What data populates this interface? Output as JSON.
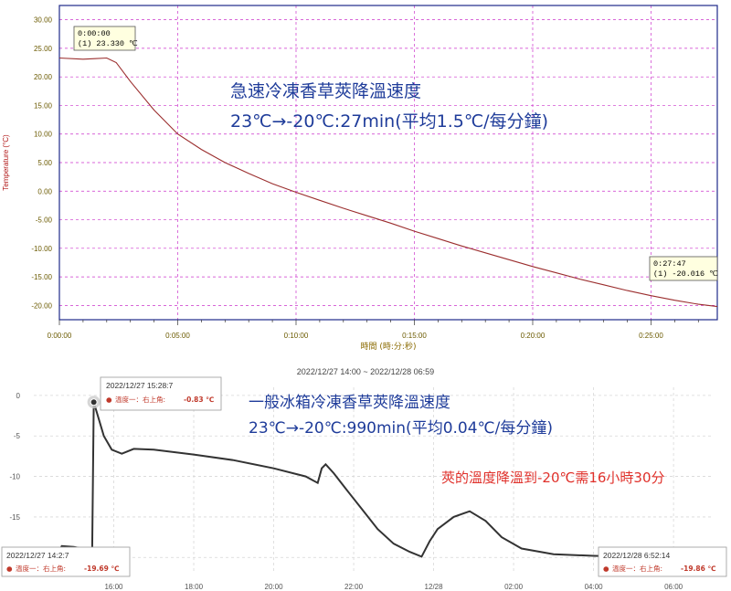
{
  "chart_data": [
    {
      "type": "line",
      "title": "急速冷凍香草莢降溫速度",
      "subtitle": "23℃→-20℃:27min(平均1.5℃/每分鐘)",
      "xlabel": "時間 (時:分:秒)",
      "ylabel": "Temperature (°C)",
      "xlim": [
        0,
        27.8
      ],
      "ylim": [
        -22.5,
        32.5
      ],
      "y_ticks": [
        "30.00",
        "25.00",
        "20.00",
        "15.00",
        "10.00",
        "5.00",
        "0.00",
        "-5.00",
        "-10.00",
        "-15.00",
        "-20.00"
      ],
      "y_tick_values": [
        30,
        25,
        20,
        15,
        10,
        5,
        0,
        -5,
        -10,
        -15,
        -20
      ],
      "x_ticks": [
        "0:00:00",
        "0:05:00",
        "0:10:00",
        "0:15:00",
        "0:20:00",
        "0:25:00"
      ],
      "x_tick_values": [
        0,
        5,
        10,
        15,
        20,
        25
      ],
      "grid": true,
      "series": [
        {
          "x": [
            0,
            1,
            1.5,
            2,
            2.4,
            3,
            4,
            5,
            6,
            7,
            8,
            9,
            10,
            11,
            12,
            13,
            14,
            15,
            16,
            17,
            18,
            19,
            20,
            21,
            22,
            23,
            24,
            25,
            26,
            27,
            27.8
          ],
          "values": [
            23.3,
            23.1,
            23.2,
            23.3,
            22.5,
            19.2,
            14.2,
            10.0,
            7.3,
            5.0,
            3.1,
            1.3,
            -0.2,
            -1.6,
            -3.0,
            -4.3,
            -5.6,
            -7.0,
            -8.3,
            -9.6,
            -10.8,
            -12.0,
            -13.2,
            -14.3,
            -15.4,
            -16.4,
            -17.4,
            -18.3,
            -19.1,
            -19.8,
            -20.2
          ]
        }
      ],
      "annotations": [
        {
          "time": "0:00:00",
          "value": "(1) 23.330 ℃"
        },
        {
          "time": "0:27:47",
          "value": "(1) -20.016 ℃"
        }
      ]
    },
    {
      "type": "line",
      "title": "2022/12/27 14:00 ~ 2022/12/28 06:59",
      "subtitle": "一般冰箱冷凍香草莢降溫速度",
      "subtitle2": "23℃→-20℃:990min(平均0.04℃/每分鐘)",
      "note": "莢的溫度降溫到-20℃需16小時30分",
      "xlim": [
        14.0,
        6.99
      ],
      "ylim": [
        -22,
        1
      ],
      "y_ticks": [
        "0",
        "-5",
        "-10",
        "-15",
        "-20"
      ],
      "y_tick_values": [
        0,
        -5,
        -10,
        -15,
        -20
      ],
      "x_ticks": [
        "16:00",
        "18:00",
        "20:00",
        "22:00",
        "12/28",
        "02:00",
        "04:00",
        "06:00"
      ],
      "x_tick_hours": [
        16,
        18,
        20,
        22,
        24,
        26,
        28,
        30
      ],
      "grid": true,
      "series": [
        {
          "x": [
            14.0,
            14.6,
            14.7,
            15.0,
            15.3,
            15.46,
            15.5,
            15.75,
            15.95,
            16.2,
            16.5,
            17.0,
            18.0,
            19.0,
            20.0,
            20.8,
            21.1,
            21.2,
            21.3,
            21.5,
            21.8,
            22.2,
            22.6,
            23.0,
            23.4,
            23.7,
            23.9,
            24.1,
            24.5,
            24.9,
            25.3,
            25.7,
            26.2,
            27.0,
            28.0,
            29.0,
            30.0,
            30.87
          ],
          "values": [
            -19.69,
            -19.6,
            -18.6,
            -18.7,
            -19.0,
            -19.0,
            -0.83,
            -5.0,
            -6.7,
            -7.2,
            -6.6,
            -6.7,
            -7.3,
            -8.0,
            -9.0,
            -10.0,
            -10.8,
            -9.0,
            -8.5,
            -9.6,
            -11.5,
            -14.0,
            -16.5,
            -18.3,
            -19.3,
            -19.9,
            -18.0,
            -16.5,
            -15.0,
            -14.3,
            -15.5,
            -17.5,
            -18.9,
            -19.6,
            -19.8,
            -19.9,
            -19.9,
            -19.86
          ]
        }
      ],
      "annotations": [
        {
          "time": "2022/12/27 15:28:7",
          "label": "溫度一：右上角:",
          "value": "-0.83 ℃"
        },
        {
          "time": "2022/12/27 14:2:7",
          "label": "溫度一：右上角:",
          "value": "-19.69 ℃"
        },
        {
          "time": "2022/12/28 6:52:14",
          "label": "溫度一：右上角:",
          "value": "-19.86 ℃"
        }
      ]
    }
  ],
  "colors": {
    "line1": "#9b2e2e",
    "grid1": "#cc33cc",
    "frame1": "#1f2a8a",
    "line2": "#333333",
    "grid2": "#d8d8d8",
    "title_text": "#1f3c9a",
    "note_text": "#e0312b",
    "tooltip1_bg": "#ffffe0"
  }
}
